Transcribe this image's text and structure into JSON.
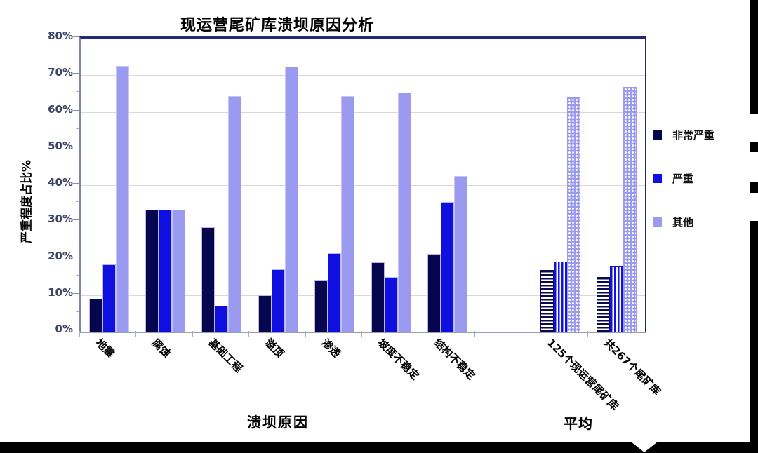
{
  "title": "现运营尾矿库溃坝原因分析",
  "y_axis": {
    "label": "严重程度占比%",
    "ticks": [
      "80%",
      "70%",
      "60%",
      "50%",
      "40%",
      "30%",
      "20%",
      "10%",
      "0%"
    ]
  },
  "x_axis": {
    "label": "溃坝原因",
    "average_label": "平均"
  },
  "legend": [
    {
      "label": "非常严重",
      "color": "#06064e",
      "swatch": "solid"
    },
    {
      "label": "严重",
      "color": "#0f0fe0",
      "swatch": "solid"
    },
    {
      "label": "其他",
      "color": "#9a9af0",
      "swatch": "solid"
    }
  ],
  "colors": {
    "very_severe": "#06064e",
    "severe": "#0f0fe0",
    "other": "#9a9af0",
    "plot_border": "#232a6d",
    "gridline": "#d9d9d9",
    "tick_label": "#3d4468",
    "decoration_black": "#000000"
  },
  "chart_data": {
    "type": "bar",
    "title": "现运营尾矿库溃坝原因分析",
    "xlabel": "溃坝原因",
    "ylabel": "严重程度占比%",
    "ylim": [
      0,
      80
    ],
    "ytick_step_pct": 10,
    "grid": true,
    "legend_position": "right",
    "categories": [
      "地震",
      "腐蚀",
      "基础工程",
      "溢顶",
      "渗透",
      "坡度不稳定",
      "结构不稳定",
      "125个现运营尾矿库",
      "共267个尾矿库"
    ],
    "category_sections": [
      "cause",
      "cause",
      "cause",
      "cause",
      "cause",
      "cause",
      "cause",
      "average",
      "average"
    ],
    "series": [
      {
        "name": "非常严重",
        "values": [
          9,
          33.3,
          28.5,
          10,
          14,
          19,
          21.3,
          16.8,
          15
        ]
      },
      {
        "name": "严重",
        "values": [
          18.3,
          33.3,
          7,
          17,
          21.5,
          15,
          35.5,
          19.2,
          17.8
        ]
      },
      {
        "name": "其他",
        "values": [
          72.5,
          33.3,
          64.3,
          72.3,
          64.3,
          65.3,
          42.5,
          64,
          66.7
        ]
      }
    ],
    "notes": "average groups (125个现运营尾矿库, 共267个尾矿库) are drawn with striped/dotted pattern fills"
  }
}
